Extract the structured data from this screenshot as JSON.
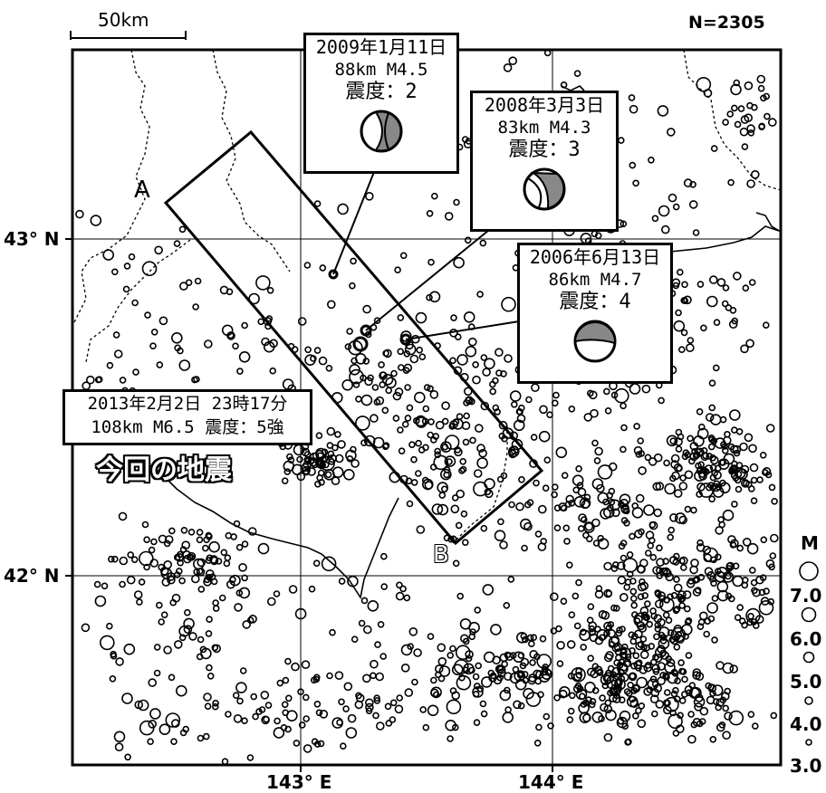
{
  "scale_bar": {
    "label": "50km"
  },
  "count_label": "N=2305",
  "latitude_labels": [
    "43° N",
    "42° N"
  ],
  "longitude_labels": [
    "143° E",
    "144° E"
  ],
  "section_labels": {
    "start": "A",
    "end": "B"
  },
  "magnitude_legend": {
    "title": "M",
    "values": [
      "7.0",
      "6.0",
      "5.0",
      "4.0",
      "3.0"
    ]
  },
  "events": [
    {
      "date": "2009年1月11日",
      "line2": "88km  M4.5",
      "intensity": "震度：2"
    },
    {
      "date": "2008年3月3日",
      "line2": "83km  M4.3",
      "intensity": "震度：3"
    },
    {
      "date": "2006年6月13日",
      "line2": "86km  M4.7",
      "intensity": "震度：4"
    }
  ],
  "main_event": {
    "line1": "2013年2月2日 23時17分",
    "line2": "108km  M6.5 震度：5強",
    "caption": "今回の地震"
  },
  "colors": {
    "frame": "#000000",
    "mechanism_fill": "#888888"
  }
}
